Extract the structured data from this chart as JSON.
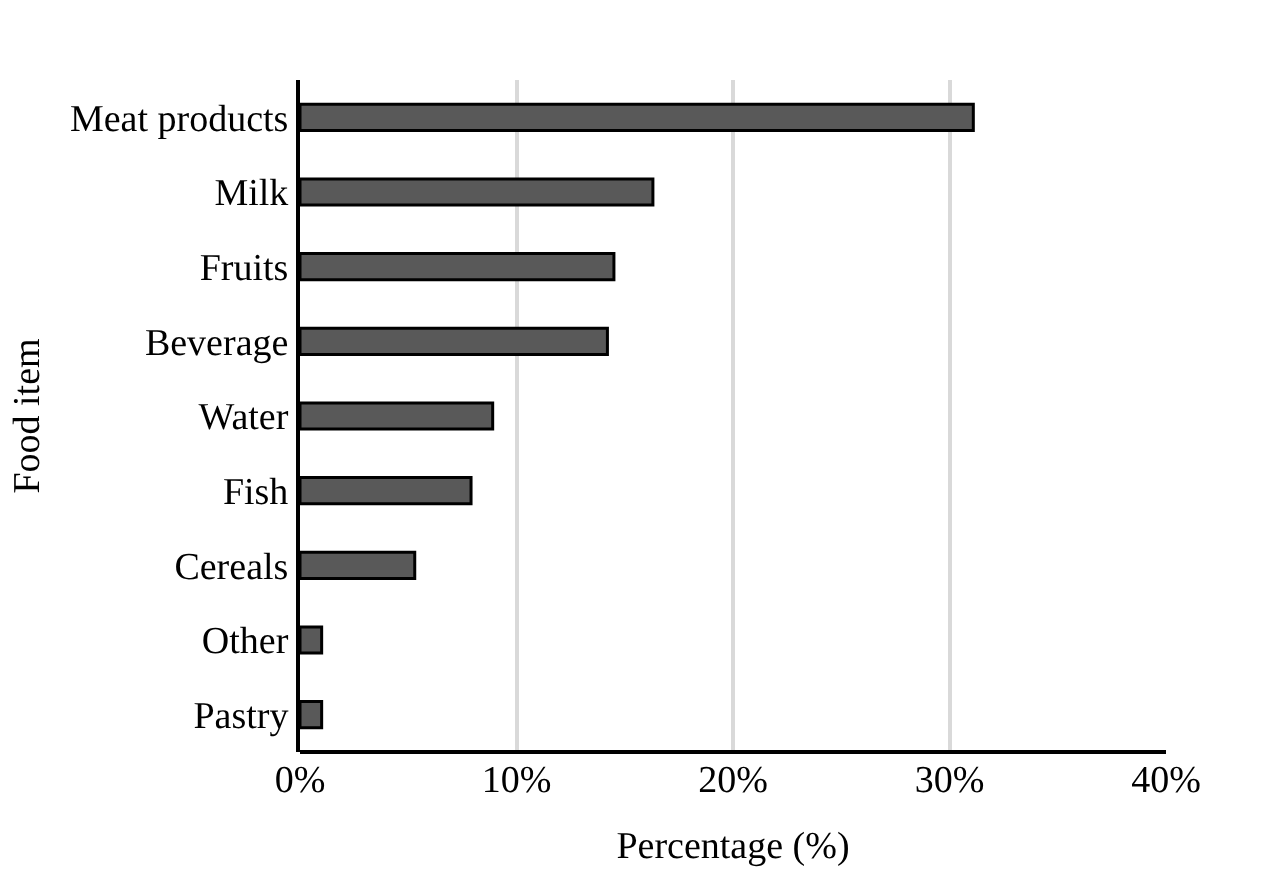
{
  "chart_data": {
    "type": "bar",
    "orientation": "horizontal",
    "xlabel": "Percentage (%)",
    "ylabel": "Food item",
    "categories": [
      "Meat products",
      "Milk",
      "Fruits",
      "Beverage",
      "Water",
      "Fish",
      "Cereals",
      "Other",
      "Pastry"
    ],
    "values": [
      31.1,
      16.3,
      14.5,
      14.2,
      8.9,
      7.9,
      5.3,
      1.0,
      1.0
    ],
    "color": "#595959",
    "xlim": [
      0,
      40
    ],
    "xticks": [
      {
        "value": 0,
        "label": "0%"
      },
      {
        "value": 10,
        "label": "10%"
      },
      {
        "value": 20,
        "label": "20%"
      },
      {
        "value": 30,
        "label": "30%"
      },
      {
        "value": 40,
        "label": "40%"
      }
    ],
    "grid": "x",
    "legend": false
  }
}
